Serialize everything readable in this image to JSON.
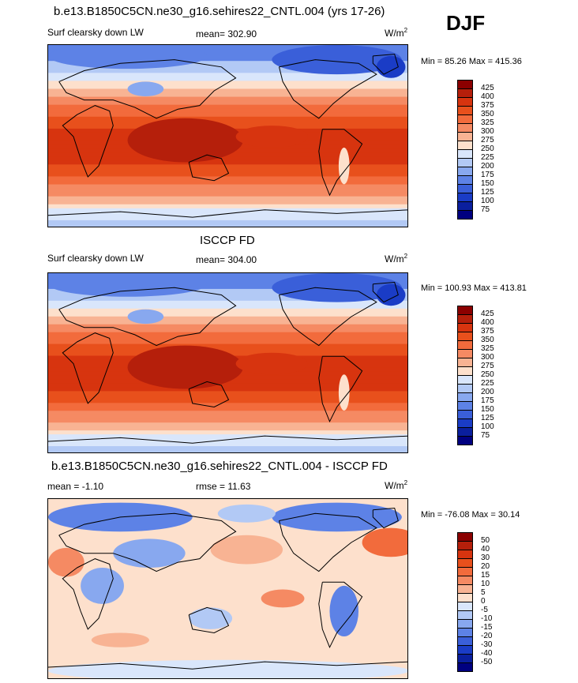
{
  "season": "DJF",
  "units": "W/m",
  "units_exp": "2",
  "panels": [
    {
      "title": "b.e13.B1850C5CN.ne30_g16.sehires22_CNTL.004 (yrs 17-26)",
      "variable": "Surf clearsky down LW",
      "mean_label": "mean= 302.90",
      "minmax": "Min =  85.26 Max = 415.36",
      "kind": "abs"
    },
    {
      "title": "ISCCP FD",
      "variable": "Surf clearsky down LW",
      "mean_label": "mean= 304.00",
      "minmax": "Min = 100.93 Max = 413.81",
      "kind": "abs"
    },
    {
      "title": "b.e13.B1850C5CN.ne30_g16.sehires22_CNTL.004 - ISCCP FD",
      "variable": "mean =  -1.10",
      "mean_label": "rmse =  11.63",
      "minmax": "Min = -76.08 Max =  30.14",
      "kind": "diff"
    }
  ],
  "colorbars": {
    "abs": {
      "labels": [
        "425",
        "400",
        "375",
        "350",
        "325",
        "300",
        "275",
        "250",
        "225",
        "200",
        "175",
        "150",
        "125",
        "100",
        "75"
      ],
      "colors": [
        "#8b0000",
        "#b51f0b",
        "#d7340f",
        "#e8501c",
        "#f26b3c",
        "#f58a63",
        "#f8b393",
        "#fde0cc",
        "#d9e6fb",
        "#b2c9f5",
        "#88a8ef",
        "#5d82e6",
        "#3a5fd9",
        "#1a3cc6",
        "#0a1f9e",
        "#000080"
      ]
    },
    "diff": {
      "labels": [
        "50",
        "40",
        "30",
        "20",
        "15",
        "10",
        "5",
        "0",
        "-5",
        "-10",
        "-15",
        "-20",
        "-30",
        "-40",
        "-50"
      ],
      "colors": [
        "#8b0000",
        "#b51f0b",
        "#d7340f",
        "#e8501c",
        "#f26b3c",
        "#f58a63",
        "#f8b393",
        "#fde0cc",
        "#d9e6fb",
        "#b2c9f5",
        "#88a8ef",
        "#5d82e6",
        "#3a5fd9",
        "#1a3cc6",
        "#0a1f9e",
        "#000080"
      ]
    }
  },
  "chart_data": [
    {
      "type": "heatmap",
      "title": "b.e13.B1850C5CN.ne30_g16.sehires22_CNTL.004 (yrs 17-26)",
      "subtitle": "Surf clearsky down LW",
      "mean": 302.9,
      "min": 85.26,
      "max": 415.36,
      "levels": [
        75,
        100,
        125,
        150,
        175,
        200,
        225,
        250,
        275,
        300,
        325,
        350,
        375,
        400,
        425
      ],
      "units": "W/m2",
      "season": "DJF"
    },
    {
      "type": "heatmap",
      "title": "ISCCP FD",
      "subtitle": "Surf clearsky down LW",
      "mean": 304.0,
      "min": 100.93,
      "max": 413.81,
      "levels": [
        75,
        100,
        125,
        150,
        175,
        200,
        225,
        250,
        275,
        300,
        325,
        350,
        375,
        400,
        425
      ],
      "units": "W/m2",
      "season": "DJF"
    },
    {
      "type": "heatmap",
      "title": "b.e13.B1850C5CN.ne30_g16.sehires22_CNTL.004 - ISCCP FD",
      "mean": -1.1,
      "rmse": 11.63,
      "min": -76.08,
      "max": 30.14,
      "levels": [
        -50,
        -40,
        -30,
        -20,
        -15,
        -10,
        -5,
        0,
        5,
        10,
        15,
        20,
        30,
        40,
        50
      ],
      "units": "W/m2",
      "season": "DJF"
    }
  ]
}
